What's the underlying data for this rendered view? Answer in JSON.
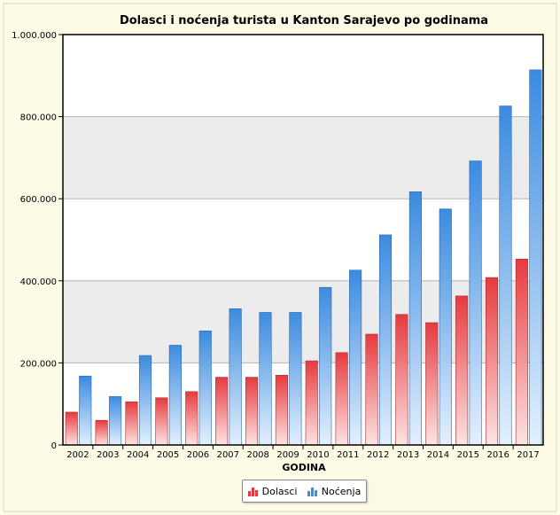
{
  "chart_data": {
    "type": "bar",
    "title": "Dolasci i noćenja turista u Kanton Sarajevo po godinama",
    "xlabel": "GODINA",
    "ylabel": "",
    "ylim": [
      0,
      1000000
    ],
    "yticks": [
      {
        "value": 0,
        "label": "0"
      },
      {
        "value": 200000,
        "label": "200.000"
      },
      {
        "value": 400000,
        "label": "400.000"
      },
      {
        "value": 600000,
        "label": "600.000"
      },
      {
        "value": 800000,
        "label": "800.000"
      },
      {
        "value": 1000000,
        "label": "1.000.000"
      }
    ],
    "categories": [
      "2002",
      "2003",
      "2004",
      "2005",
      "2006",
      "2007",
      "2008",
      "2009",
      "2010",
      "2011",
      "2012",
      "2013",
      "2014",
      "2015",
      "2016",
      "2017"
    ],
    "series": [
      {
        "name": "Dolasci",
        "color": "#e8383d",
        "values": [
          80000,
          60000,
          105000,
          115000,
          130000,
          165000,
          165000,
          170000,
          205000,
          225000,
          270000,
          318000,
          298000,
          363000,
          408000,
          453000
        ]
      },
      {
        "name": "Noćenja",
        "color": "#3e8ee0",
        "values": [
          168000,
          118000,
          218000,
          243000,
          278000,
          332000,
          323000,
          323000,
          384000,
          426000,
          512000,
          617000,
          575000,
          692000,
          826000,
          914000
        ]
      }
    ],
    "grid": "horizontal, alternating bands",
    "legend": "bottom-center"
  }
}
